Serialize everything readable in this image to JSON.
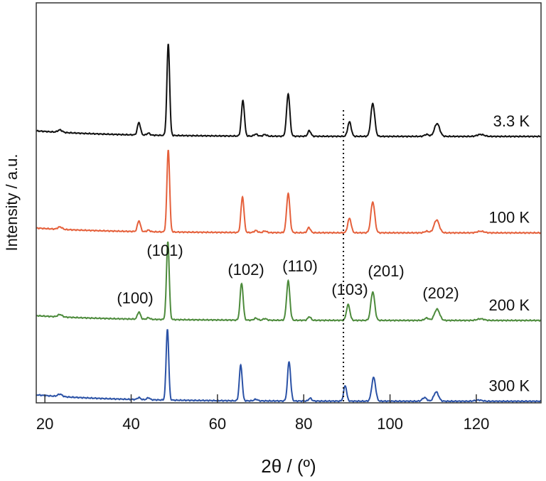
{
  "chart_data": {
    "type": "line",
    "title": "",
    "xlabel": "2θ / (º)",
    "ylabel": "Intensity / a.u.",
    "xlim": [
      18,
      135
    ],
    "ylim": [
      0,
      100
    ],
    "xticks": [
      20,
      40,
      60,
      80,
      100,
      120
    ],
    "x_tick_labels": [
      "20",
      "40",
      "60",
      "80",
      "100",
      "120"
    ],
    "reference_line_x": 89.2,
    "series": [
      {
        "name": "3.3 K",
        "color": "#111111",
        "offset": 66.6,
        "baseline_slope": 1.4,
        "peaks": [
          [
            23.5,
            0.6,
            0.5
          ],
          [
            41.8,
            3.1,
            0.35
          ],
          [
            44.0,
            0.5,
            0.35
          ],
          [
            48.6,
            22.8,
            0.32
          ],
          [
            65.9,
            8.9,
            0.35
          ],
          [
            68.9,
            0.5,
            0.4
          ],
          [
            71.0,
            0.4,
            0.4
          ],
          [
            76.4,
            10.6,
            0.38
          ],
          [
            81.3,
            1.4,
            0.35
          ],
          [
            90.6,
            3.6,
            0.4
          ],
          [
            96.0,
            8.2,
            0.45
          ],
          [
            108.5,
            0.5,
            0.5
          ],
          [
            110.9,
            3.2,
            0.6
          ],
          [
            121.0,
            0.5,
            0.8
          ]
        ]
      },
      {
        "name": "100 K",
        "color": "#e5603b",
        "offset": 42.5,
        "baseline_slope": 1.2,
        "peaks": [
          [
            23.5,
            0.6,
            0.5
          ],
          [
            41.8,
            2.7,
            0.35
          ],
          [
            44.0,
            0.4,
            0.35
          ],
          [
            48.6,
            20.5,
            0.32
          ],
          [
            65.8,
            8.9,
            0.35
          ],
          [
            68.9,
            0.5,
            0.4
          ],
          [
            71.0,
            0.4,
            0.4
          ],
          [
            76.4,
            9.8,
            0.38
          ],
          [
            81.2,
            1.3,
            0.35
          ],
          [
            90.6,
            3.6,
            0.4
          ],
          [
            96.0,
            7.7,
            0.45
          ],
          [
            108.5,
            0.4,
            0.5
          ],
          [
            110.8,
            3.2,
            0.6
          ],
          [
            121.0,
            0.4,
            0.8
          ]
        ]
      },
      {
        "name": "200 K",
        "color": "#4d8b3c",
        "offset": 20.6,
        "baseline_slope": 1.2,
        "peaks": [
          [
            23.5,
            0.6,
            0.5
          ],
          [
            41.8,
            1.8,
            0.35
          ],
          [
            44.0,
            0.4,
            0.35
          ],
          [
            48.5,
            19.5,
            0.32
          ],
          [
            65.6,
            9.2,
            0.35
          ],
          [
            68.9,
            0.5,
            0.4
          ],
          [
            71.0,
            0.4,
            0.4
          ],
          [
            76.4,
            9.8,
            0.38
          ],
          [
            81.3,
            0.9,
            0.35
          ],
          [
            90.3,
            3.9,
            0.4
          ],
          [
            96.0,
            7.1,
            0.45
          ],
          [
            108.5,
            0.6,
            0.5
          ],
          [
            110.9,
            2.8,
            0.6
          ],
          [
            121.0,
            0.4,
            0.8
          ]
        ]
      },
      {
        "name": "300 K",
        "color": "#2b52a6",
        "offset": 0.4,
        "baseline_slope": 1.6,
        "peaks": [
          [
            23.5,
            0.6,
            0.5
          ],
          [
            41.8,
            0.5,
            0.35
          ],
          [
            44.0,
            0.5,
            0.35
          ],
          [
            48.4,
            17.8,
            0.3
          ],
          [
            65.4,
            8.9,
            0.33
          ],
          [
            68.9,
            0.4,
            0.4
          ],
          [
            76.6,
            9.8,
            0.36
          ],
          [
            81.5,
            0.7,
            0.35
          ],
          [
            89.6,
            3.9,
            0.35
          ],
          [
            96.2,
            5.9,
            0.45
          ],
          [
            108.0,
            0.9,
            0.5
          ],
          [
            110.7,
            2.3,
            0.55
          ],
          [
            120.5,
            0.3,
            0.8
          ]
        ]
      }
    ],
    "peak_labels": [
      {
        "text": "(100)",
        "x": 41.8
      },
      {
        "text": "(101)",
        "x": 48.5
      },
      {
        "text": "(102)",
        "x": 65.6
      },
      {
        "text": "(110)",
        "x": 76.4
      },
      {
        "text": "(103)",
        "x": 90.3
      },
      {
        "text": "(201)",
        "x": 96.0
      },
      {
        "text": "(202)",
        "x": 110.9
      }
    ]
  }
}
